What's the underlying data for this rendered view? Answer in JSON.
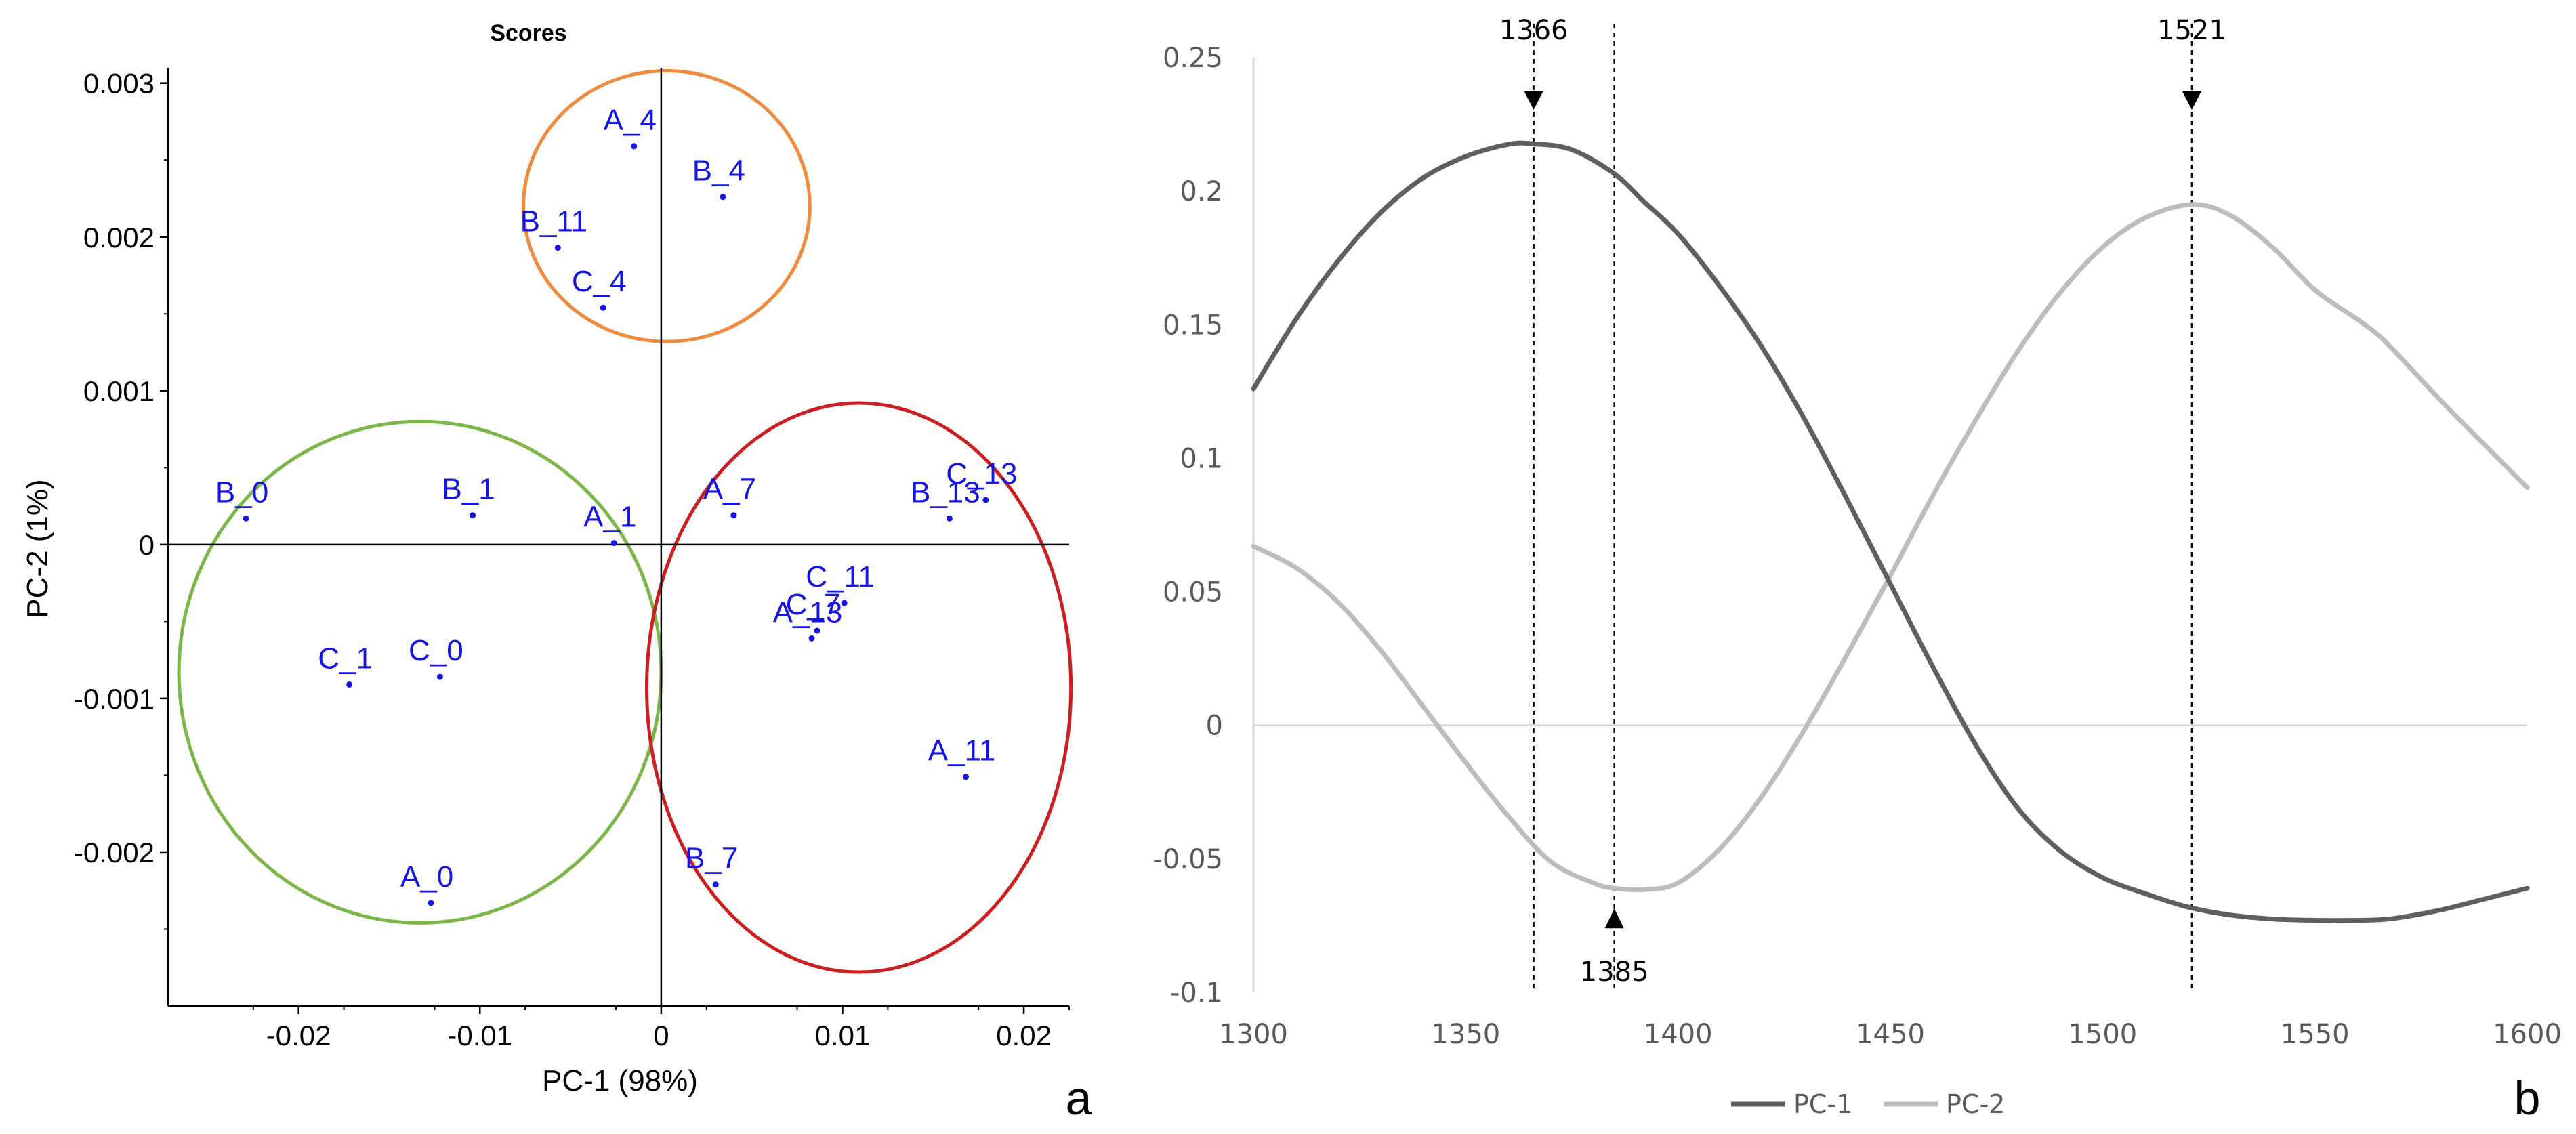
{
  "panels": {
    "a": {
      "letter": "a"
    },
    "b": {
      "letter": "b"
    }
  },
  "chart_data": [
    {
      "id": "a",
      "type": "scatter",
      "title": "Scores",
      "xlabel": "PC-1 (98%)",
      "ylabel": "PC-2 (1%)",
      "xlim": [
        -0.0272,
        0.0225
      ],
      "ylim": [
        -0.003,
        0.0031
      ],
      "xticks": [
        -0.02,
        -0.01,
        0,
        0.01,
        0.02
      ],
      "xtick_labels": [
        "-0.02",
        "-0.01",
        "0",
        "0.01",
        "0.02"
      ],
      "yticks": [
        -0.002,
        -0.001,
        0,
        0.001,
        0.002,
        0.003
      ],
      "ytick_labels": [
        "-0.002",
        "-0.001",
        "0",
        "0.001",
        "0.002",
        "0.003"
      ],
      "grid": false,
      "point_color": "#1414e6",
      "points": [
        {
          "label": "A_4",
          "x": -0.0015,
          "y": 0.00259
        },
        {
          "label": "B_4",
          "x": 0.0034,
          "y": 0.00226
        },
        {
          "label": "B_11",
          "x": -0.0057,
          "y": 0.00193
        },
        {
          "label": "C_4",
          "x": -0.0032,
          "y": 0.00154
        },
        {
          "label": "B_0",
          "x": -0.0229,
          "y": 0.00017
        },
        {
          "label": "B_1",
          "x": -0.0104,
          "y": 0.00019
        },
        {
          "label": "A_1",
          "x": -0.0026,
          "y": 1e-05
        },
        {
          "label": "A_7",
          "x": 0.004,
          "y": 0.00019
        },
        {
          "label": "C_13",
          "x": 0.0179,
          "y": 0.00029
        },
        {
          "label": "B_13",
          "x": 0.0159,
          "y": 0.00017
        },
        {
          "label": "C_11",
          "x": 0.0101,
          "y": -0.00038
        },
        {
          "label": "C_7",
          "x": 0.0086,
          "y": -0.00056
        },
        {
          "label": "A_13",
          "x": 0.0083,
          "y": -0.00061
        },
        {
          "label": "C_1",
          "x": -0.0172,
          "y": -0.00091
        },
        {
          "label": "C_0",
          "x": -0.0122,
          "y": -0.00086
        },
        {
          "label": "A_11",
          "x": 0.0168,
          "y": -0.00151
        },
        {
          "label": "B_7",
          "x": 0.003,
          "y": -0.00221
        },
        {
          "label": "A_0",
          "x": -0.0127,
          "y": -0.00233
        }
      ],
      "ellipses": [
        {
          "group": "orange",
          "color": "#f08a3c",
          "cx": 0.0003,
          "cy": 0.0022,
          "rx": 0.0079,
          "ry": 0.00088
        },
        {
          "group": "green",
          "color": "#7ab648",
          "cx": -0.0133,
          "cy": -0.00083,
          "rx": 0.0133,
          "ry": 0.00163
        },
        {
          "group": "red",
          "color": "#cc2020",
          "cx": 0.0109,
          "cy": -0.00093,
          "rx": 0.0117,
          "ry": 0.00185
        }
      ]
    },
    {
      "id": "b",
      "type": "line",
      "title": "",
      "xlabel": "",
      "ylabel": "",
      "xlim": [
        1300,
        1600
      ],
      "ylim": [
        -0.1,
        0.25
      ],
      "xticks": [
        1300,
        1350,
        1400,
        1450,
        1500,
        1550,
        1600
      ],
      "xtick_labels": [
        "1300",
        "1350",
        "1400",
        "1450",
        "1500",
        "1550",
        "1600"
      ],
      "yticks": [
        -0.1,
        -0.05,
        0,
        0.05,
        0.1,
        0.15,
        0.2,
        0.25
      ],
      "ytick_labels": [
        "-0.1",
        "-0.05",
        "0",
        "0.05",
        "0.1",
        "0.15",
        "0.2",
        "0.25"
      ],
      "grid": false,
      "legend": "bottom",
      "series": [
        {
          "name": "PC-1",
          "color": "#5f5f5f",
          "x": [
            1300,
            1310,
            1320,
            1330,
            1340,
            1350,
            1360,
            1366,
            1375,
            1385,
            1392,
            1400,
            1410,
            1420,
            1430,
            1440,
            1450,
            1460,
            1470,
            1480,
            1490,
            1500,
            1510,
            1520,
            1530,
            1540,
            1550,
            1560,
            1565,
            1570,
            1580,
            1590,
            1600
          ],
          "y": [
            0.126,
            0.152,
            0.174,
            0.192,
            0.205,
            0.213,
            0.2175,
            0.2177,
            0.2155,
            0.2065,
            0.196,
            0.184,
            0.164,
            0.141,
            0.114,
            0.084,
            0.053,
            0.022,
            -0.007,
            -0.031,
            -0.047,
            -0.057,
            -0.063,
            -0.068,
            -0.071,
            -0.0725,
            -0.073,
            -0.073,
            -0.0728,
            -0.072,
            -0.069,
            -0.065,
            -0.061
          ]
        },
        {
          "name": "PC-2",
          "color": "#bdbdbd",
          "x": [
            1300,
            1310,
            1320,
            1330,
            1340,
            1350,
            1360,
            1370,
            1380,
            1385,
            1392,
            1400,
            1410,
            1420,
            1430,
            1440,
            1450,
            1460,
            1470,
            1480,
            1490,
            1500,
            1510,
            1521,
            1530,
            1540,
            1550,
            1560,
            1565,
            1570,
            1580,
            1590,
            1600
          ],
          "y": [
            0.067,
            0.059,
            0.046,
            0.028,
            0.007,
            -0.014,
            -0.034,
            -0.051,
            -0.059,
            -0.061,
            -0.0615,
            -0.059,
            -0.046,
            -0.026,
            -0.001,
            0.027,
            0.056,
            0.086,
            0.114,
            0.14,
            0.162,
            0.179,
            0.19,
            0.195,
            0.191,
            0.179,
            0.163,
            0.152,
            0.146,
            0.138,
            0.121,
            0.105,
            0.089
          ]
        }
      ],
      "annotations": [
        {
          "label": "1366",
          "x": 1366,
          "arrow": "down",
          "y": 0.2177
        },
        {
          "label": "1385",
          "x": 1385,
          "arrow": "up",
          "y": -0.0615
        },
        {
          "label": "1521",
          "x": 1521,
          "arrow": "down",
          "y": 0.195
        }
      ]
    }
  ]
}
